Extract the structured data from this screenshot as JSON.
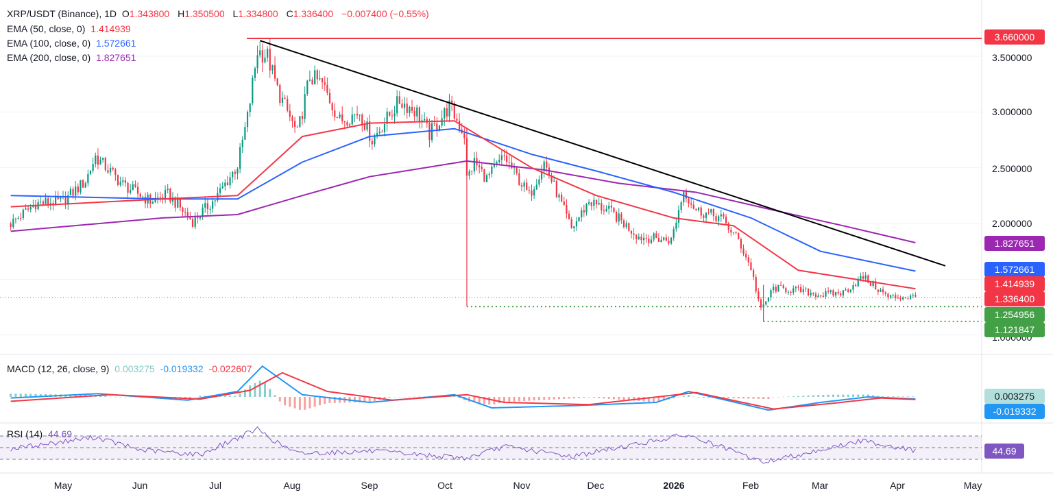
{
  "header": {
    "symbol": "XRP/USDT (Binance), 1D",
    "open_label": "O",
    "open": "1.343800",
    "high_label": "H",
    "high": "1.350500",
    "low_label": "L",
    "low": "1.334800",
    "close_label": "C",
    "close": "1.336400",
    "change": "−0.007400 (−0.55%)"
  },
  "indicators": {
    "ema50": {
      "label": "EMA (50, close, 0)",
      "value": "1.414939",
      "color": "#f23645"
    },
    "ema100": {
      "label": "EMA (100, close, 0)",
      "value": "1.572661",
      "color": "#2962ff"
    },
    "ema200": {
      "label": "EMA (200, close, 0)",
      "value": "1.827651",
      "color": "#9c27b0"
    },
    "macd": {
      "label": "MACD (12, 26, close, 9)",
      "hist": "0.003275",
      "macd": "-0.019332",
      "signal": "-0.022607"
    },
    "rsi": {
      "label": "RSI (14)",
      "value": "44.69"
    }
  },
  "price_tags": {
    "resistance": "3.660000",
    "ema200": "1.827651",
    "ema100": "1.572661",
    "ema50": "1.414939",
    "last": "1.336400",
    "support1": "1.254956",
    "support2": "1.121847",
    "macd_hist": "0.003275",
    "macd_line": "-0.019332",
    "rsi": "44.69"
  },
  "colors": {
    "up": "#089981",
    "down": "#f23645",
    "ema50": "#f23645",
    "ema100": "#2962ff",
    "ema200": "#9c27b0",
    "trendline": "#000000",
    "support": "#43a047",
    "macd_line": "#2196f3",
    "signal_line": "#f23645",
    "rsi": "#7e57c2"
  },
  "chart_data": {
    "type": "candlestick",
    "interval": "1D",
    "y_axis_ticks": [
      "3.500000",
      "3.000000",
      "2.500000",
      "2.000000",
      "1.000000"
    ],
    "x_axis_ticks": [
      "May",
      "Jun",
      "Jul",
      "Aug",
      "Sep",
      "Oct",
      "Nov",
      "Dec",
      "2026",
      "Feb",
      "Mar",
      "Apr",
      "May"
    ],
    "ylim": [
      0.9,
      3.75
    ],
    "close_path": [
      [
        "2025-04-10",
        2.0
      ],
      [
        "2025-04-20",
        2.18
      ],
      [
        "2025-05-01",
        2.2
      ],
      [
        "2025-05-10",
        2.38
      ],
      [
        "2025-05-14",
        2.6
      ],
      [
        "2025-05-25",
        2.35
      ],
      [
        "2025-06-05",
        2.2
      ],
      [
        "2025-06-12",
        2.26
      ],
      [
        "2025-06-22",
        2.02
      ],
      [
        "2025-07-01",
        2.22
      ],
      [
        "2025-07-10",
        2.52
      ],
      [
        "2025-07-14",
        2.95
      ],
      [
        "2025-07-18",
        3.55
      ],
      [
        "2025-07-22",
        3.5
      ],
      [
        "2025-07-26",
        3.2
      ],
      [
        "2025-08-03",
        2.8
      ],
      [
        "2025-08-08",
        3.32
      ],
      [
        "2025-08-13",
        3.25
      ],
      [
        "2025-08-20",
        2.92
      ],
      [
        "2025-08-28",
        3.0
      ],
      [
        "2025-09-02",
        2.75
      ],
      [
        "2025-09-13",
        3.1
      ],
      [
        "2025-09-20",
        3.0
      ],
      [
        "2025-09-25",
        2.8
      ],
      [
        "2025-10-03",
        3.05
      ],
      [
        "2025-10-09",
        2.8
      ],
      [
        "2025-10-10",
        2.4
      ],
      [
        "2025-10-13",
        2.55
      ],
      [
        "2025-10-18",
        2.4
      ],
      [
        "2025-10-25",
        2.6
      ],
      [
        "2025-11-04",
        2.25
      ],
      [
        "2025-11-10",
        2.55
      ],
      [
        "2025-11-21",
        1.95
      ],
      [
        "2025-11-28",
        2.2
      ],
      [
        "2025-12-07",
        2.1
      ],
      [
        "2025-12-18",
        1.88
      ],
      [
        "2025-12-31",
        1.85
      ],
      [
        "2026-01-05",
        2.3
      ],
      [
        "2026-01-10",
        2.12
      ],
      [
        "2026-01-20",
        2.05
      ],
      [
        "2026-01-27",
        1.85
      ],
      [
        "2026-02-01",
        1.6
      ],
      [
        "2026-02-05",
        1.22
      ],
      [
        "2026-02-10",
        1.42
      ],
      [
        "2026-02-20",
        1.4
      ],
      [
        "2026-03-01",
        1.36
      ],
      [
        "2026-03-10",
        1.38
      ],
      [
        "2026-03-18",
        1.52
      ],
      [
        "2026-03-28",
        1.34
      ],
      [
        "2026-04-08",
        1.34
      ]
    ],
    "ema50_path": [
      [
        "2025-04-10",
        2.15
      ],
      [
        "2025-06-10",
        2.22
      ],
      [
        "2025-07-10",
        2.25
      ],
      [
        "2025-08-05",
        2.78
      ],
      [
        "2025-09-01",
        2.9
      ],
      [
        "2025-10-05",
        2.92
      ],
      [
        "2025-11-05",
        2.5
      ],
      [
        "2025-12-01",
        2.25
      ],
      [
        "2026-01-01",
        2.05
      ],
      [
        "2026-01-25",
        1.98
      ],
      [
        "2026-02-20",
        1.58
      ],
      [
        "2026-04-08",
        1.415
      ]
    ],
    "ema100_path": [
      [
        "2025-04-10",
        2.25
      ],
      [
        "2025-06-10",
        2.22
      ],
      [
        "2025-07-10",
        2.22
      ],
      [
        "2025-08-05",
        2.55
      ],
      [
        "2025-09-01",
        2.78
      ],
      [
        "2025-10-05",
        2.85
      ],
      [
        "2025-11-05",
        2.62
      ],
      [
        "2025-12-01",
        2.47
      ],
      [
        "2026-01-01",
        2.28
      ],
      [
        "2026-02-01",
        2.05
      ],
      [
        "2026-03-01",
        1.75
      ],
      [
        "2026-04-08",
        1.573
      ]
    ],
    "ema200_path": [
      [
        "2025-04-10",
        1.93
      ],
      [
        "2025-06-10",
        2.05
      ],
      [
        "2025-07-10",
        2.08
      ],
      [
        "2025-08-05",
        2.25
      ],
      [
        "2025-09-01",
        2.42
      ],
      [
        "2025-10-10",
        2.56
      ],
      [
        "2025-11-10",
        2.48
      ],
      [
        "2025-12-10",
        2.36
      ],
      [
        "2026-01-10",
        2.28
      ],
      [
        "2026-02-10",
        2.12
      ],
      [
        "2026-03-10",
        1.98
      ],
      [
        "2026-04-08",
        1.828
      ]
    ],
    "resistance_level": 3.66,
    "support_levels": [
      {
        "value": 1.254956,
        "from": "2025-10-10"
      },
      {
        "value": 1.121847,
        "from": "2026-02-06"
      }
    ],
    "trendline": [
      [
        "2025-07-19",
        3.64
      ],
      [
        "2026-04-20",
        1.62
      ]
    ],
    "macd_path": [
      [
        "2025-04-10",
        -0.01
      ],
      [
        "2025-05-15",
        0.03
      ],
      [
        "2025-06-20",
        -0.03
      ],
      [
        "2025-07-10",
        0.05
      ],
      [
        "2025-07-20",
        0.28
      ],
      [
        "2025-08-05",
        0.02
      ],
      [
        "2025-09-01",
        -0.05
      ],
      [
        "2025-10-05",
        0.02
      ],
      [
        "2025-10-20",
        -0.1
      ],
      [
        "2025-11-22",
        -0.08
      ],
      [
        "2025-12-25",
        -0.05
      ],
      [
        "2026-01-07",
        0.05
      ],
      [
        "2026-02-08",
        -0.12
      ],
      [
        "2026-03-01",
        -0.05
      ],
      [
        "2026-03-20",
        0.0
      ],
      [
        "2026-04-08",
        -0.019
      ]
    ],
    "signal_path": [
      [
        "2025-04-10",
        -0.04
      ],
      [
        "2025-05-20",
        0.02
      ],
      [
        "2025-06-25",
        -0.02
      ],
      [
        "2025-07-15",
        0.06
      ],
      [
        "2025-07-28",
        0.22
      ],
      [
        "2025-08-15",
        0.05
      ],
      [
        "2025-09-10",
        -0.03
      ],
      [
        "2025-10-10",
        0.02
      ],
      [
        "2025-10-25",
        -0.05
      ],
      [
        "2025-11-28",
        -0.07
      ],
      [
        "2026-01-10",
        0.04
      ],
      [
        "2026-02-10",
        -0.11
      ],
      [
        "2026-03-05",
        -0.06
      ],
      [
        "2026-03-25",
        -0.01
      ],
      [
        "2026-04-08",
        -0.023
      ]
    ],
    "rsi_path": [
      [
        "2025-04-10",
        48
      ],
      [
        "2025-05-14",
        68
      ],
      [
        "2025-06-01",
        46
      ],
      [
        "2025-06-25",
        38
      ],
      [
        "2025-07-18",
        82
      ],
      [
        "2025-07-26",
        58
      ],
      [
        "2025-08-03",
        40
      ],
      [
        "2025-09-01",
        44
      ],
      [
        "2025-10-10",
        32
      ],
      [
        "2025-10-25",
        52
      ],
      [
        "2025-11-21",
        35
      ],
      [
        "2026-01-06",
        72
      ],
      [
        "2026-02-06",
        25
      ],
      [
        "2026-03-18",
        62
      ],
      [
        "2026-04-08",
        44.69
      ]
    ],
    "rsi_band": [
      30,
      70
    ]
  }
}
